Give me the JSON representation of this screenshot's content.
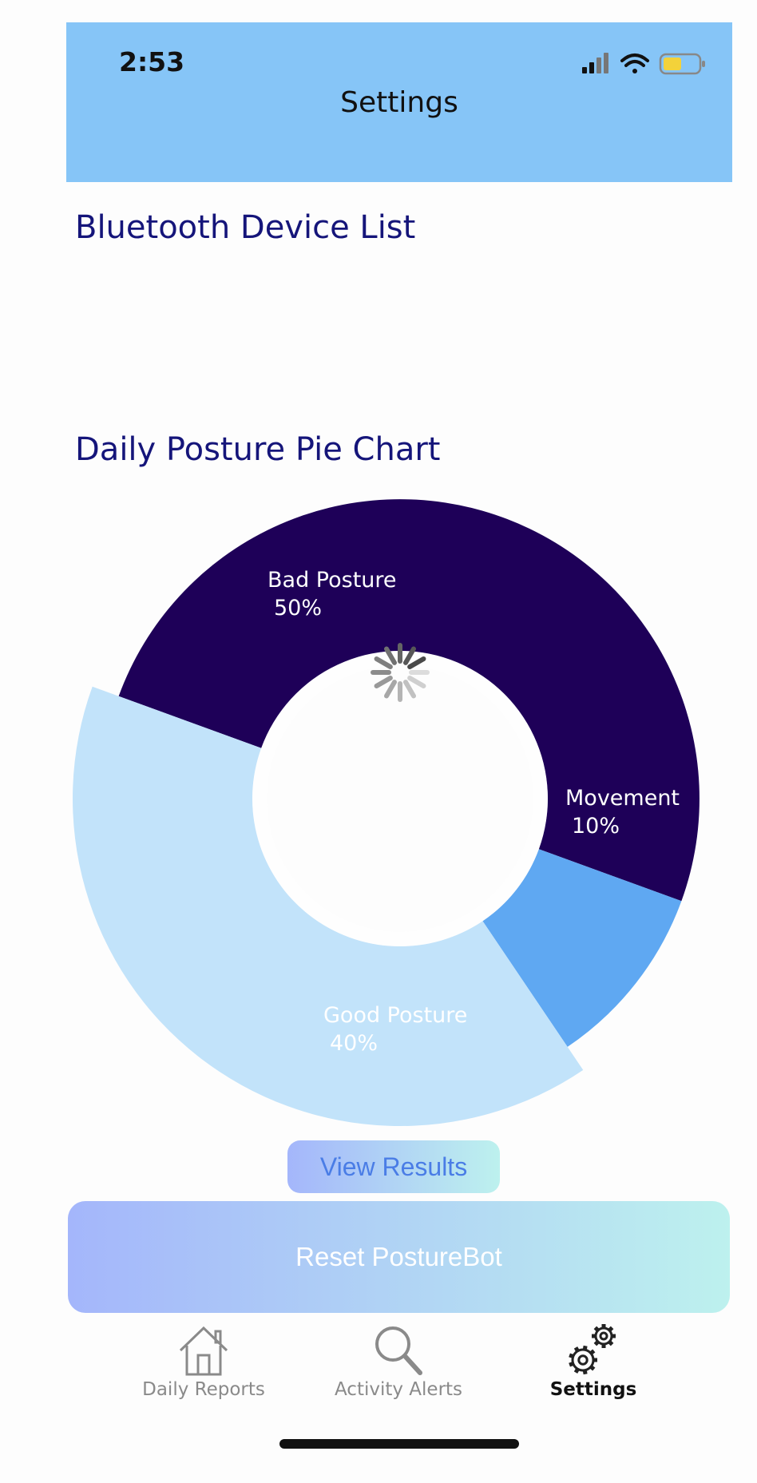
{
  "status_bar": {
    "time": "2:53",
    "icons": [
      "signal-icon",
      "wifi-icon",
      "battery-icon"
    ]
  },
  "header": {
    "title": "Settings"
  },
  "bluetooth": {
    "title": "Bluetooth Device List",
    "devices": []
  },
  "pie_section": {
    "title": "Daily Posture Pie Chart"
  },
  "chart_data": {
    "type": "pie",
    "title": "Daily Posture Pie Chart",
    "slices": [
      {
        "label": "Bad Posture",
        "value": 50,
        "display": "50%",
        "color": "#1e0058",
        "text_color": "#ffffff"
      },
      {
        "label": "Movement",
        "value": 10,
        "display": "10%",
        "color": "#5fa8f2",
        "text_color": "#ffffff"
      },
      {
        "label": "Good Posture",
        "value": 40,
        "display": "40%",
        "color": "#c2e3fa",
        "text_color": "#ffffff"
      }
    ],
    "loading_indicator": true
  },
  "actions": {
    "view_results": "View Results",
    "reset": "Reset PostureBot"
  },
  "tabbar": {
    "tabs": [
      {
        "label": "Daily Reports",
        "icon": "house-icon",
        "active": false
      },
      {
        "label": "Activity Alerts",
        "icon": "search-icon",
        "active": false
      },
      {
        "label": "Settings",
        "icon": "gears-icon",
        "active": true
      }
    ]
  },
  "colors": {
    "header_bg": "#86c5f7",
    "section_title": "#15157a",
    "button_gradient_start": "#a4b6fb",
    "button_gradient_end": "#bdf1ee"
  }
}
